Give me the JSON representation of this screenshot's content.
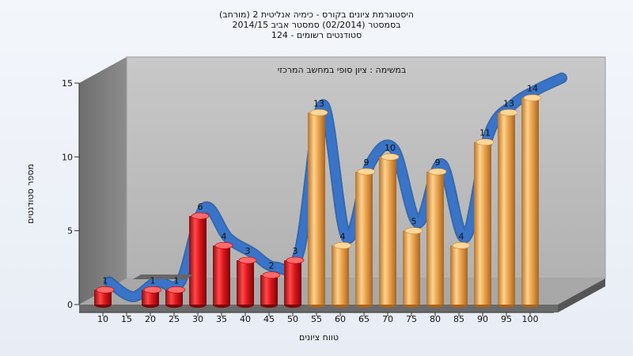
{
  "chart_data": {
    "type": "bar",
    "title_lines": [
      "היסטוגרמת ציונים בקורס - כימיה אנליטית 2 (מורחב)",
      "בסמסטר  (02/2014)  סמסטר אביב 2014/15",
      "סטודנטים רשומים - 124"
    ],
    "subtitle": "במשימה : ציון סופי במחשב המרכזי",
    "xlabel": "טווח ציונים",
    "ylabel": "מספר סטודנטים",
    "ylim": [
      0,
      15
    ],
    "yticks": [
      0,
      5,
      10,
      15
    ],
    "categories": [
      "10",
      "15",
      "20",
      "25",
      "30",
      "35",
      "40",
      "45",
      "50",
      "55",
      "60",
      "65",
      "70",
      "75",
      "80",
      "85",
      "90",
      "95",
      "100"
    ],
    "values": [
      1,
      0,
      1,
      1,
      6,
      4,
      3,
      2,
      3,
      13,
      4,
      9,
      10,
      5,
      9,
      4,
      11,
      13,
      14
    ],
    "fail_color": "#d8141c",
    "pass_color": "#e8a548",
    "curve_color": "#3a74c8",
    "grid": false
  }
}
